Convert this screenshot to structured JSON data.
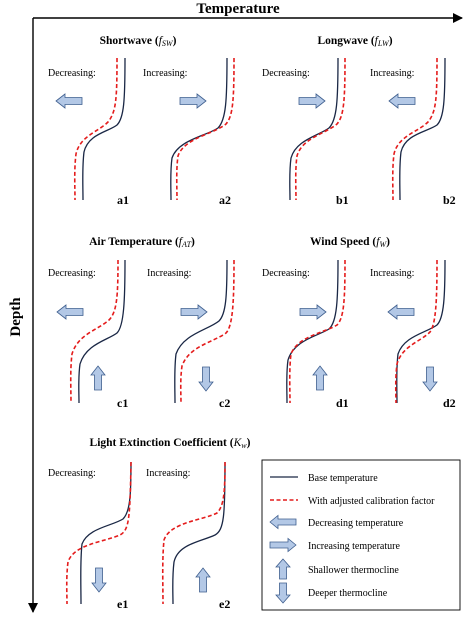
{
  "axes": {
    "x_label": "Temperature",
    "y_label": "Depth"
  },
  "groups": [
    {
      "id": "shortwave",
      "title_text": "Shortwave (",
      "title_symbol": "f",
      "title_subscript": "SW",
      "title_close": ")"
    },
    {
      "id": "longwave",
      "title_text": "Longwave  (",
      "title_symbol": "f",
      "title_subscript": "LW",
      "title_close": ")"
    },
    {
      "id": "air_temperature",
      "title_text": "Air Temperature (",
      "title_symbol": "f",
      "title_subscript": "AT",
      "title_close": ")"
    },
    {
      "id": "wind_speed",
      "title_text": "Wind Speed (",
      "title_symbol": "f",
      "title_subscript": "W",
      "title_close": ")"
    },
    {
      "id": "light_extinction",
      "title_text": "Light Extinction Coefficient (",
      "title_symbol": "K",
      "title_subscript": "w",
      "title_close": ")"
    }
  ],
  "panels": [
    {
      "id": "a1",
      "label": "a1",
      "direction_label": "Decreasing:",
      "temperature_arrow": "left",
      "thermocline_arrow": "none"
    },
    {
      "id": "a2",
      "label": "a2",
      "direction_label": "Increasing:",
      "temperature_arrow": "right",
      "thermocline_arrow": "none"
    },
    {
      "id": "b1",
      "label": "b1",
      "direction_label": "Decreasing:",
      "temperature_arrow": "right",
      "thermocline_arrow": "none"
    },
    {
      "id": "b2",
      "label": "b2",
      "direction_label": "Increasing:",
      "temperature_arrow": "left",
      "thermocline_arrow": "none"
    },
    {
      "id": "c1",
      "label": "c1",
      "direction_label": "Decreasing:",
      "temperature_arrow": "left",
      "thermocline_arrow": "up"
    },
    {
      "id": "c2",
      "label": "c2",
      "direction_label": "Increasing:",
      "temperature_arrow": "right",
      "thermocline_arrow": "down"
    },
    {
      "id": "d1",
      "label": "d1",
      "direction_label": "Decreasing:",
      "temperature_arrow": "right",
      "thermocline_arrow": "up"
    },
    {
      "id": "d2",
      "label": "d2",
      "direction_label": "Increasing:",
      "temperature_arrow": "left",
      "thermocline_arrow": "down"
    },
    {
      "id": "e1",
      "label": "e1",
      "direction_label": "Decreasing:",
      "temperature_arrow": "none",
      "thermocline_arrow": "down"
    },
    {
      "id": "e2",
      "label": "e2",
      "direction_label": "Increasing:",
      "temperature_arrow": "none",
      "thermocline_arrow": "up"
    }
  ],
  "legend": {
    "items": [
      {
        "id": "base",
        "label": "Base temperature"
      },
      {
        "id": "adjusted",
        "label": "With adjusted calibration factor"
      },
      {
        "id": "decreasing",
        "label": "Decreasing temperature"
      },
      {
        "id": "increasing",
        "label": "Increasing temperature"
      },
      {
        "id": "shallower",
        "label": "Shallower thermocline"
      },
      {
        "id": "deeper",
        "label": "Deeper thermocline"
      }
    ]
  },
  "colors": {
    "base_line": "#1a2745",
    "adjusted_line": "#e41c1c",
    "arrow_fill": "#b3c8e6",
    "arrow_stroke": "#3f5f8f"
  }
}
